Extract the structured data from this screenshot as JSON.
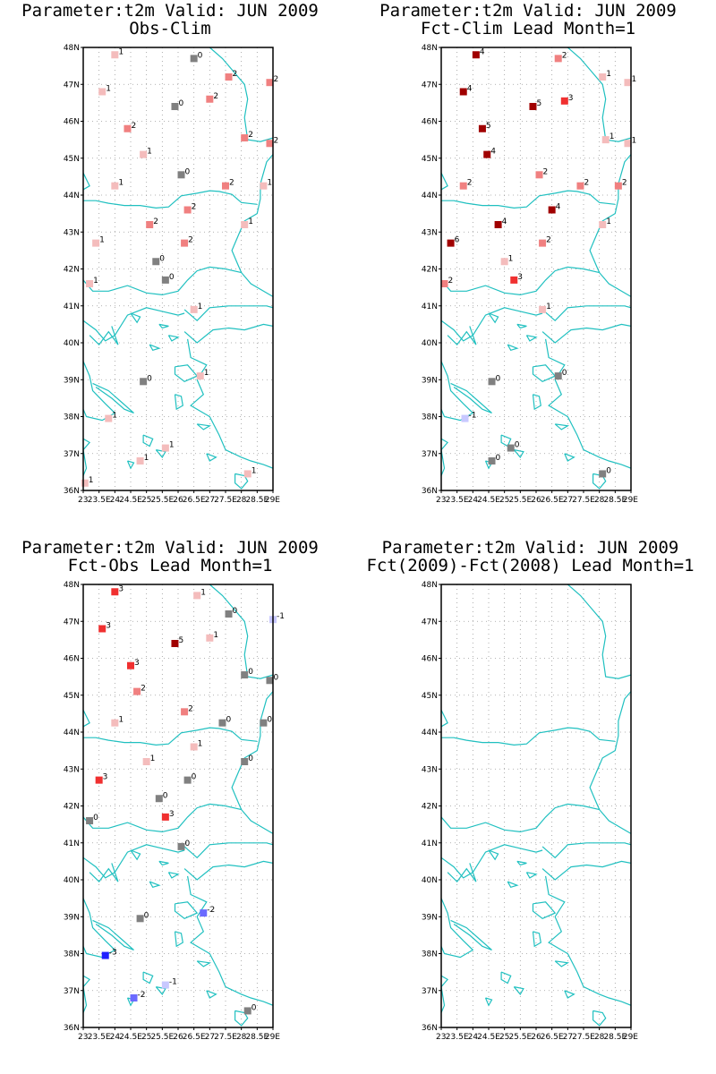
{
  "colors": {
    "coast": "#20c0c0",
    "grid": "#9a9a9a",
    "frame": "#000000",
    "cat": {
      "-3": "#2020ff",
      "-2": "#6a6aff",
      "-1": "#c8c8ff",
      "0": "#808080",
      "1": "#f4bcbc",
      "2": "#f08080",
      "3": "#f03030",
      "4": "#a00000",
      "5": "#a00000",
      "6": "#a00000"
    }
  },
  "axes": {
    "lat_labels": [
      "36N",
      "37N",
      "38N",
      "39N",
      "40N",
      "41N",
      "42N",
      "43N",
      "44N",
      "45N",
      "46N",
      "47N",
      "48N"
    ],
    "lon_labels": [
      "23",
      "23.5E",
      "24",
      "24.5E",
      "25",
      "25.5E",
      "26",
      "26.5E",
      "27",
      "27.5E",
      "28",
      "28.5E",
      "29E"
    ],
    "lon_range": [
      23,
      29
    ],
    "lat_range": [
      36,
      48
    ]
  },
  "panels": [
    {
      "title1": "Parameter:t2m Valid: JUN 2009",
      "title2": "Obs-Clim",
      "points": [
        {
          "lon": 24.0,
          "lat": 47.8,
          "value": 1
        },
        {
          "lon": 26.5,
          "lat": 47.7,
          "value": 0
        },
        {
          "lon": 27.6,
          "lat": 47.2,
          "value": 2
        },
        {
          "lon": 28.9,
          "lat": 47.05,
          "value": 2
        },
        {
          "lon": 23.6,
          "lat": 46.8,
          "value": 1
        },
        {
          "lon": 27.0,
          "lat": 46.6,
          "value": 2
        },
        {
          "lon": 25.9,
          "lat": 46.4,
          "value": 0
        },
        {
          "lon": 24.4,
          "lat": 45.8,
          "value": 2
        },
        {
          "lon": 28.1,
          "lat": 45.55,
          "value": 2
        },
        {
          "lon": 28.9,
          "lat": 45.4,
          "value": 2
        },
        {
          "lon": 24.9,
          "lat": 45.1,
          "value": 1
        },
        {
          "lon": 26.1,
          "lat": 44.55,
          "value": 0
        },
        {
          "lon": 24.0,
          "lat": 44.25,
          "value": 1
        },
        {
          "lon": 27.5,
          "lat": 44.25,
          "value": 2
        },
        {
          "lon": 28.7,
          "lat": 44.25,
          "value": 1
        },
        {
          "lon": 26.3,
          "lat": 43.6,
          "value": 2
        },
        {
          "lon": 25.1,
          "lat": 43.2,
          "value": 2
        },
        {
          "lon": 28.1,
          "lat": 43.2,
          "value": 1
        },
        {
          "lon": 23.4,
          "lat": 42.7,
          "value": 1
        },
        {
          "lon": 26.2,
          "lat": 42.7,
          "value": 2
        },
        {
          "lon": 25.3,
          "lat": 42.2,
          "value": 0
        },
        {
          "lon": 25.6,
          "lat": 41.7,
          "value": 0
        },
        {
          "lon": 23.2,
          "lat": 41.6,
          "value": 1
        },
        {
          "lon": 26.5,
          "lat": 40.9,
          "value": 1
        },
        {
          "lon": 26.7,
          "lat": 39.1,
          "value": 1
        },
        {
          "lon": 24.9,
          "lat": 38.95,
          "value": 0
        },
        {
          "lon": 23.8,
          "lat": 37.95,
          "value": 1
        },
        {
          "lon": 25.6,
          "lat": 37.15,
          "value": 1
        },
        {
          "lon": 24.8,
          "lat": 36.8,
          "value": 1
        },
        {
          "lon": 28.2,
          "lat": 36.45,
          "value": 1
        },
        {
          "lon": 23.05,
          "lat": 36.2,
          "value": 1
        }
      ]
    },
    {
      "title1": "Parameter:t2m Valid: JUN 2009",
      "title2": "Fct-Clim Lead Month=1",
      "points": [
        {
          "lon": 24.1,
          "lat": 47.8,
          "value": 4
        },
        {
          "lon": 26.7,
          "lat": 47.7,
          "value": 2
        },
        {
          "lon": 28.1,
          "lat": 47.2,
          "value": 1
        },
        {
          "lon": 28.9,
          "lat": 47.05,
          "value": 1
        },
        {
          "lon": 23.7,
          "lat": 46.8,
          "value": 4
        },
        {
          "lon": 26.9,
          "lat": 46.55,
          "value": 3
        },
        {
          "lon": 25.9,
          "lat": 46.4,
          "value": 5
        },
        {
          "lon": 24.3,
          "lat": 45.8,
          "value": 5
        },
        {
          "lon": 28.2,
          "lat": 45.5,
          "value": 1
        },
        {
          "lon": 28.9,
          "lat": 45.4,
          "value": 1
        },
        {
          "lon": 24.45,
          "lat": 45.1,
          "value": 4
        },
        {
          "lon": 26.1,
          "lat": 44.55,
          "value": 2
        },
        {
          "lon": 23.7,
          "lat": 44.25,
          "value": 2
        },
        {
          "lon": 27.4,
          "lat": 44.25,
          "value": 2
        },
        {
          "lon": 28.6,
          "lat": 44.25,
          "value": 2
        },
        {
          "lon": 26.5,
          "lat": 43.6,
          "value": 4
        },
        {
          "lon": 24.8,
          "lat": 43.2,
          "value": 4
        },
        {
          "lon": 28.1,
          "lat": 43.2,
          "value": 1
        },
        {
          "lon": 23.3,
          "lat": 42.7,
          "value": 6
        },
        {
          "lon": 26.2,
          "lat": 42.7,
          "value": 2
        },
        {
          "lon": 25.0,
          "lat": 42.2,
          "value": 1
        },
        {
          "lon": 25.3,
          "lat": 41.7,
          "value": 3
        },
        {
          "lon": 23.1,
          "lat": 41.6,
          "value": 2
        },
        {
          "lon": 26.2,
          "lat": 40.9,
          "value": 1
        },
        {
          "lon": 26.7,
          "lat": 39.1,
          "value": 0
        },
        {
          "lon": 24.6,
          "lat": 38.95,
          "value": 0
        },
        {
          "lon": 23.75,
          "lat": 37.95,
          "value": -1
        },
        {
          "lon": 25.2,
          "lat": 37.15,
          "value": 0
        },
        {
          "lon": 24.6,
          "lat": 36.8,
          "value": 0
        },
        {
          "lon": 28.1,
          "lat": 36.45,
          "value": 0
        }
      ]
    },
    {
      "title1": "Parameter:t2m Valid: JUN 2009",
      "title2": "Fct-Obs Lead Month=1",
      "points": [
        {
          "lon": 24.0,
          "lat": 47.8,
          "value": 3
        },
        {
          "lon": 26.6,
          "lat": 47.7,
          "value": 1
        },
        {
          "lon": 27.6,
          "lat": 47.2,
          "value": 0
        },
        {
          "lon": 29.0,
          "lat": 47.05,
          "value": -1
        },
        {
          "lon": 23.6,
          "lat": 46.8,
          "value": 3
        },
        {
          "lon": 27.0,
          "lat": 46.55,
          "value": 1
        },
        {
          "lon": 25.9,
          "lat": 46.4,
          "value": 5
        },
        {
          "lon": 24.5,
          "lat": 45.8,
          "value": 3
        },
        {
          "lon": 28.1,
          "lat": 45.55,
          "value": 0
        },
        {
          "lon": 28.9,
          "lat": 45.4,
          "value": 0
        },
        {
          "lon": 24.7,
          "lat": 45.1,
          "value": 2
        },
        {
          "lon": 26.2,
          "lat": 44.55,
          "value": 2
        },
        {
          "lon": 24.0,
          "lat": 44.25,
          "value": 1
        },
        {
          "lon": 27.4,
          "lat": 44.25,
          "value": 0
        },
        {
          "lon": 28.7,
          "lat": 44.25,
          "value": 0
        },
        {
          "lon": 26.5,
          "lat": 43.6,
          "value": 1
        },
        {
          "lon": 25.0,
          "lat": 43.2,
          "value": 1
        },
        {
          "lon": 28.1,
          "lat": 43.2,
          "value": 0
        },
        {
          "lon": 23.5,
          "lat": 42.7,
          "value": 3
        },
        {
          "lon": 26.3,
          "lat": 42.7,
          "value": 0
        },
        {
          "lon": 25.4,
          "lat": 42.2,
          "value": 0
        },
        {
          "lon": 25.6,
          "lat": 41.7,
          "value": 3
        },
        {
          "lon": 23.2,
          "lat": 41.6,
          "value": 0
        },
        {
          "lon": 26.1,
          "lat": 40.9,
          "value": 0
        },
        {
          "lon": 26.8,
          "lat": 39.1,
          "value": -2
        },
        {
          "lon": 24.8,
          "lat": 38.95,
          "value": 0
        },
        {
          "lon": 23.7,
          "lat": 37.95,
          "value": -3
        },
        {
          "lon": 25.6,
          "lat": 37.15,
          "value": -1
        },
        {
          "lon": 24.6,
          "lat": 36.8,
          "value": -2
        },
        {
          "lon": 28.2,
          "lat": 36.45,
          "value": 0
        }
      ]
    },
    {
      "title1": "Parameter:t2m Valid: JUN 2009",
      "title2": "Fct(2009)-Fct(2008) Lead Month=1",
      "points": []
    }
  ]
}
